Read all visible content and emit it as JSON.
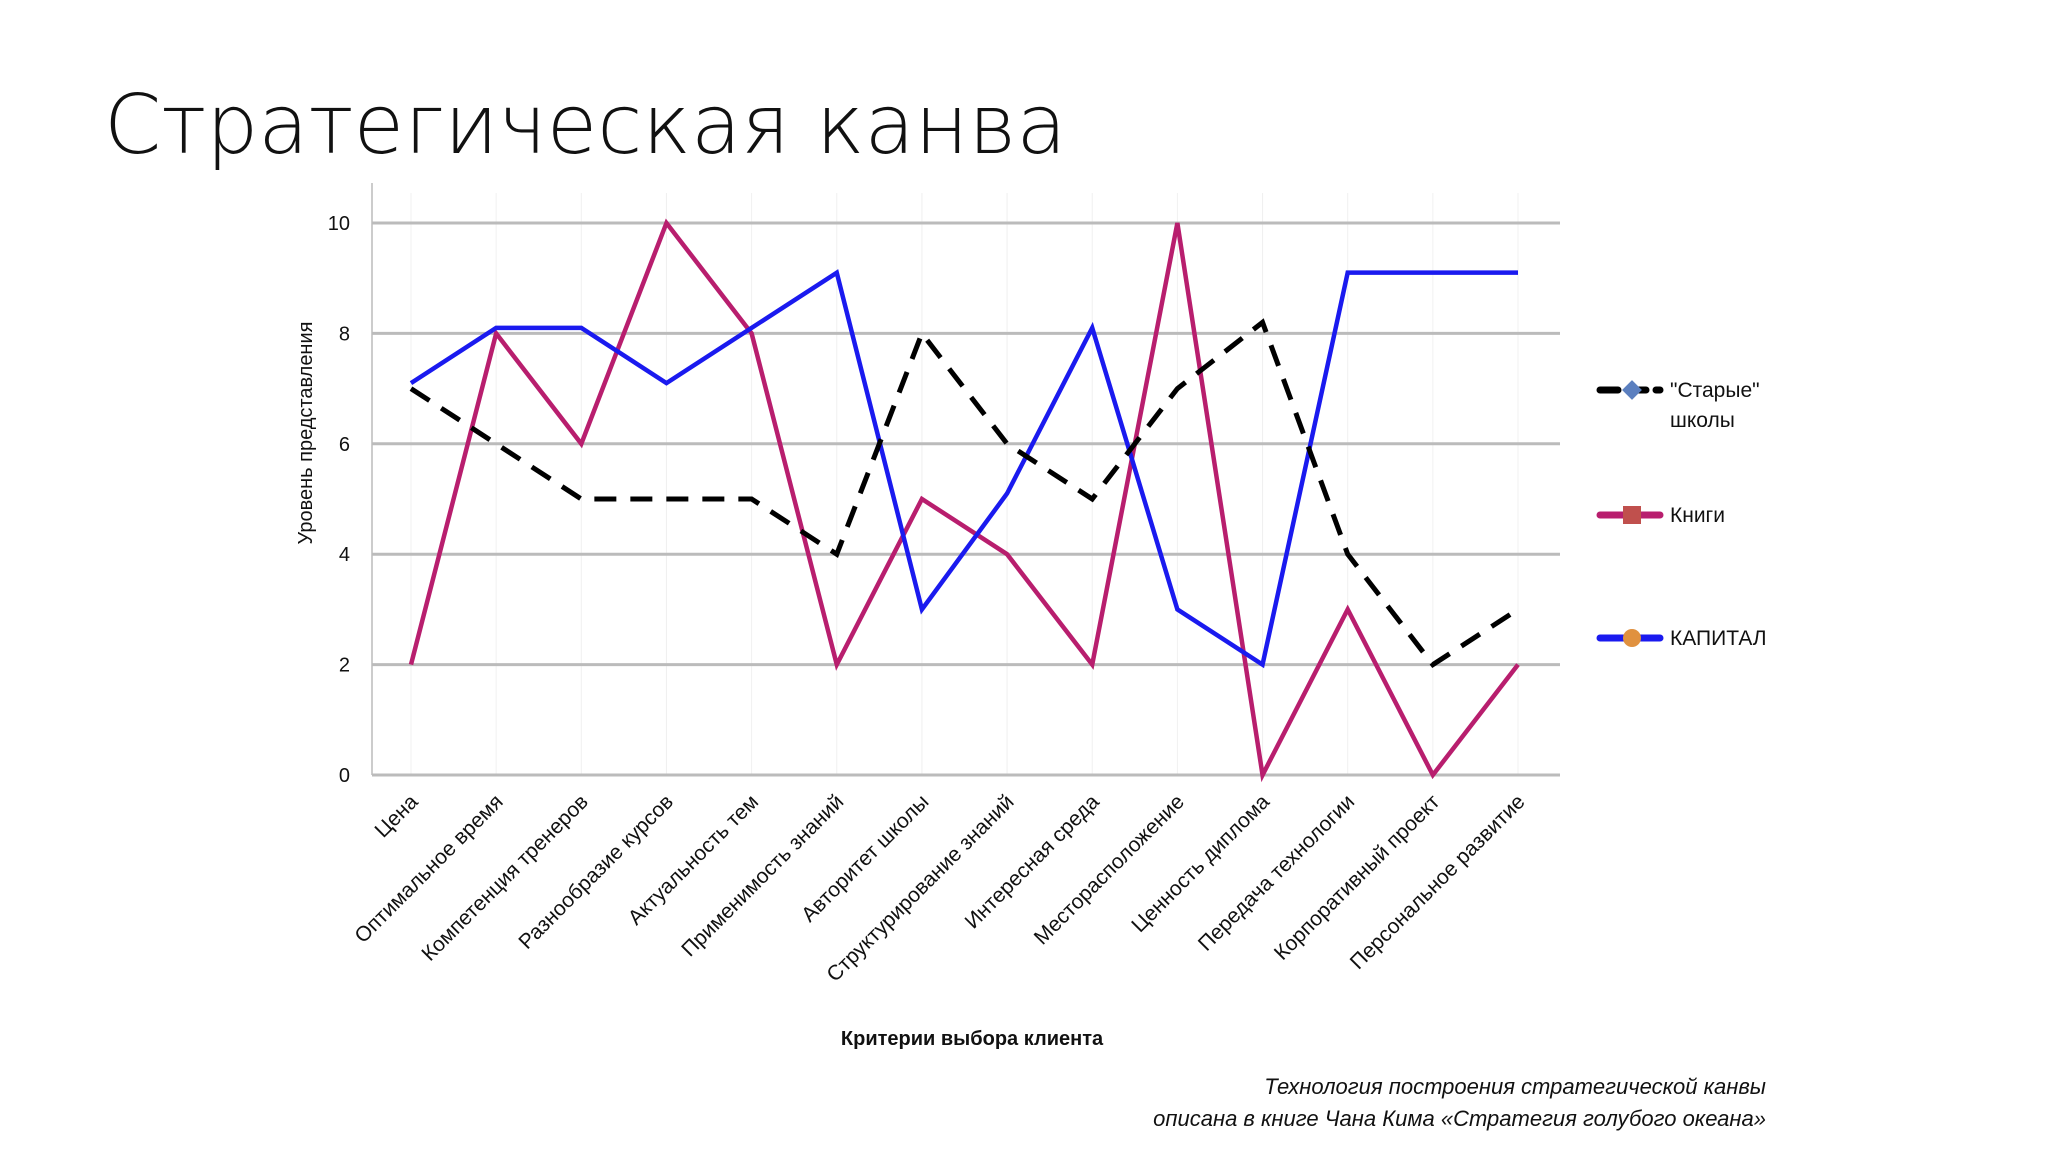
{
  "title": "Стратегическая канва",
  "footer": {
    "line1": "Технология построения стратегической канвы",
    "line2": "описана в книге Чана Кима «Стратегия голубого океана»"
  },
  "chart_data": {
    "type": "line",
    "xlabel": "Критерии выбора клиента",
    "ylabel": "Уровень представления",
    "ylim": [
      0,
      10
    ],
    "yticks": [
      "0",
      "2",
      "4",
      "6",
      "8",
      "10"
    ],
    "grid": true,
    "legend_position": "right",
    "categories": [
      "Цена",
      "Оптимальное время",
      "Компетенция тренеров",
      "Разнообразие курсов",
      "Актуальность тем",
      "Применимость знаний",
      "Авторитет школы",
      "Структурирование знаний",
      "Интересная среда",
      "Месторасположение",
      "Ценность диплома",
      "Передача технологии",
      "Корпоративный проект",
      "Персональное развитие"
    ],
    "series": [
      {
        "name": "\"Старые\" школы",
        "color": "#000000",
        "dash": true,
        "marker_color": "#5b7fbf",
        "values": [
          7,
          6,
          5,
          5,
          5,
          4,
          8,
          6,
          5,
          7,
          8.2,
          4,
          2,
          3
        ]
      },
      {
        "name": "Книги",
        "color": "#b81e6e",
        "dash": false,
        "marker_color": "#c0504d",
        "values": [
          2,
          8,
          6,
          10,
          8,
          2,
          5,
          4,
          2,
          10,
          0,
          3,
          0,
          2
        ]
      },
      {
        "name": "КАПИТАЛ",
        "color": "#1a1aef",
        "dash": false,
        "marker_color": "#e0913f",
        "values": [
          7.1,
          8.1,
          8.1,
          7.1,
          8.1,
          9.1,
          3,
          5.1,
          8.1,
          3,
          2,
          9.1,
          9.1,
          9.1
        ]
      }
    ]
  }
}
